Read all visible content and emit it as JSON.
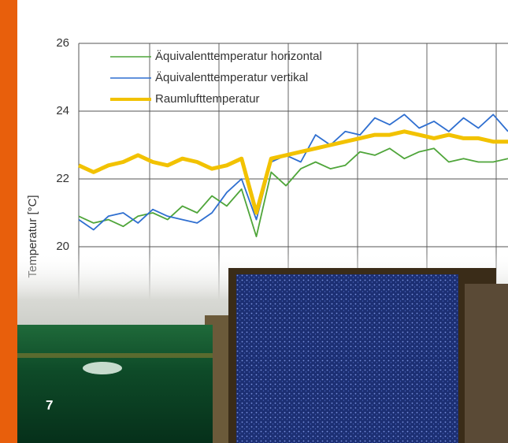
{
  "chart_data": {
    "type": "line",
    "ylabel": "Temperatur [°C]",
    "ylim": [
      18,
      26
    ],
    "yticks": [
      20,
      22,
      24,
      26
    ],
    "grid": true,
    "series": [
      {
        "name": "Äquivalenttemperatur horizontal",
        "color": "#4fa53a",
        "values": [
          20.9,
          20.7,
          20.8,
          20.6,
          20.9,
          21.0,
          20.8,
          21.2,
          21.0,
          21.5,
          21.2,
          21.7,
          20.3,
          22.2,
          21.8,
          22.3,
          22.5,
          22.3,
          22.4,
          22.8,
          22.7,
          22.9,
          22.6,
          22.8,
          22.9,
          22.5,
          22.6,
          22.5,
          22.5,
          22.6
        ]
      },
      {
        "name": "Äquivalenttemperatur vertikal",
        "color": "#2f6fd0",
        "values": [
          20.8,
          20.5,
          20.9,
          21.0,
          20.7,
          21.1,
          20.9,
          20.8,
          20.7,
          21.0,
          21.6,
          22.0,
          20.8,
          22.5,
          22.7,
          22.5,
          23.3,
          23.0,
          23.4,
          23.3,
          23.8,
          23.6,
          23.9,
          23.5,
          23.7,
          23.4,
          23.8,
          23.5,
          23.9,
          23.4
        ]
      },
      {
        "name": "Raumlufttemperatur",
        "color": "#f2c200",
        "values": [
          22.4,
          22.2,
          22.4,
          22.5,
          22.7,
          22.5,
          22.4,
          22.6,
          22.5,
          22.3,
          22.4,
          22.6,
          21.0,
          22.6,
          22.7,
          22.8,
          22.9,
          23.0,
          23.1,
          23.2,
          23.3,
          23.3,
          23.4,
          23.3,
          23.2,
          23.3,
          23.2,
          23.2,
          23.1,
          23.1
        ]
      }
    ]
  },
  "page_number": "7"
}
